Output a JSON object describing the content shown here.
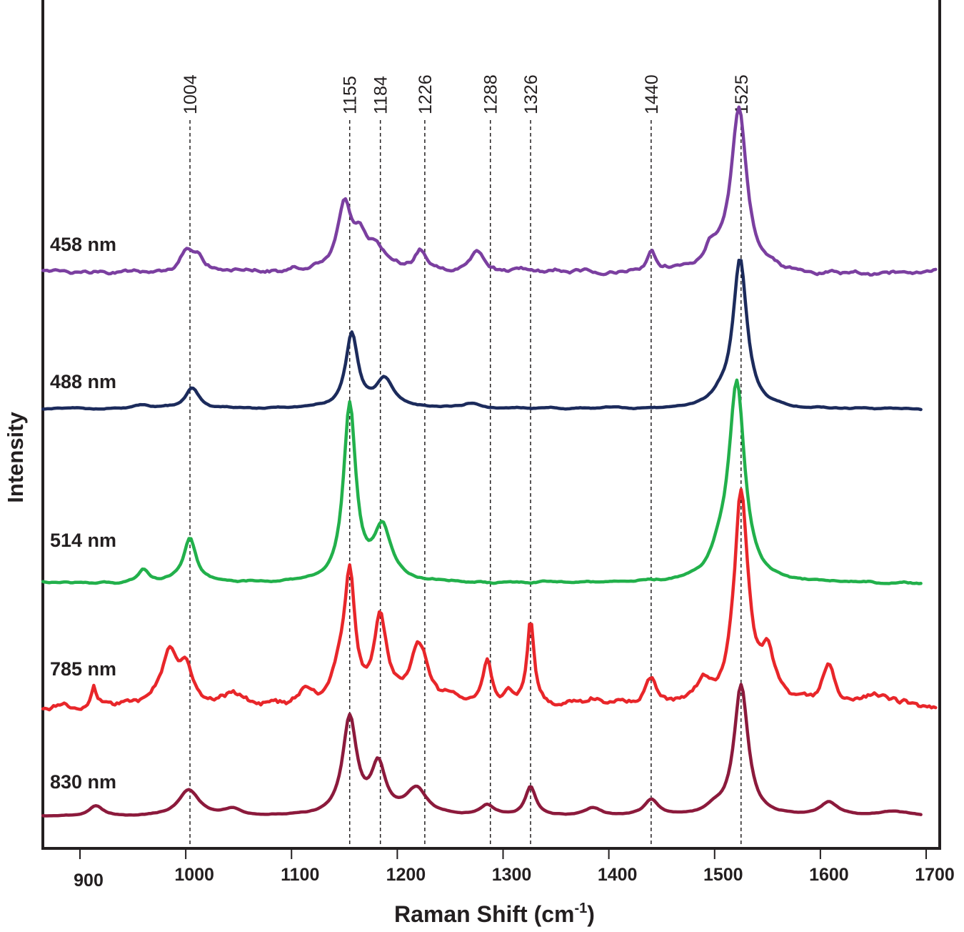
{
  "chart_data": {
    "type": "line",
    "title": "",
    "xlabel": "Raman Shift (cm",
    "xlabel_superscript": "-1",
    "xlabel_suffix": ")",
    "ylabel": "Intensity",
    "xlim": [
      865,
      1710
    ],
    "x_ticks": [
      900,
      1000,
      1100,
      1200,
      1300,
      1400,
      1500,
      1600,
      1700
    ],
    "y_ticks": [],
    "grid": false,
    "legend": "inline labels at left of each trace",
    "peak_markers": [
      1004,
      1155,
      1184,
      1226,
      1288,
      1326,
      1440,
      1525
    ],
    "series": [
      {
        "name": "458 nm",
        "color": "#7b3fa0",
        "x_range": [
          865,
          1710
        ],
        "baseline": 0.19,
        "noise": 0.038,
        "peaks": [
          [
            1000,
            0.13,
            8
          ],
          [
            1012,
            0.08,
            6
          ],
          [
            1150,
            0.42,
            8
          ],
          [
            1165,
            0.14,
            6
          ],
          [
            1180,
            0.16,
            12
          ],
          [
            1222,
            0.12,
            6
          ],
          [
            1275,
            0.12,
            8
          ],
          [
            1440,
            0.13,
            4
          ],
          [
            1496,
            0.12,
            8
          ],
          [
            1523,
            1.0,
            9
          ]
        ]
      },
      {
        "name": "488 nm",
        "color": "#1c2b5c",
        "x_range": [
          865,
          1695
        ],
        "baseline": 0.0,
        "noise": 0.012,
        "peaks": [
          [
            960,
            0.02,
            10
          ],
          [
            1006,
            0.14,
            8
          ],
          [
            1157,
            0.5,
            7
          ],
          [
            1188,
            0.19,
            10
          ],
          [
            1270,
            0.03,
            10
          ],
          [
            1505,
            0.06,
            10
          ],
          [
            1524,
            1.0,
            8
          ]
        ]
      },
      {
        "name": "514 nm",
        "color": "#22b04b",
        "x_range": [
          865,
          1695
        ],
        "baseline": 0.0,
        "noise": 0.012,
        "peaks": [
          [
            960,
            0.07,
            6
          ],
          [
            1004,
            0.23,
            7
          ],
          [
            1155,
            0.9,
            7
          ],
          [
            1186,
            0.27,
            10
          ],
          [
            1505,
            0.1,
            12
          ],
          [
            1521,
            1.0,
            9
          ]
        ]
      },
      {
        "name": "785 nm",
        "color": "#e8262a",
        "x_range": [
          865,
          1710
        ],
        "baseline": 0.04,
        "noise": 0.045,
        "peaks": [
          [
            913,
            0.1,
            3
          ],
          [
            985,
            0.25,
            8
          ],
          [
            1000,
            0.18,
            8
          ],
          [
            1045,
            0.06,
            10
          ],
          [
            1113,
            0.05,
            7
          ],
          [
            1155,
            0.58,
            6
          ],
          [
            1145,
            0.12,
            8
          ],
          [
            1184,
            0.4,
            7
          ],
          [
            1220,
            0.28,
            11
          ],
          [
            1285,
            0.19,
            5
          ],
          [
            1304,
            0.07,
            5
          ],
          [
            1326,
            0.4,
            4
          ],
          [
            1385,
            0.04,
            8
          ],
          [
            1439,
            0.13,
            7
          ],
          [
            1490,
            0.09,
            10
          ],
          [
            1525,
            1.0,
            8
          ],
          [
            1550,
            0.22,
            8
          ],
          [
            1608,
            0.18,
            7
          ],
          [
            1660,
            0.05,
            20
          ]
        ]
      },
      {
        "name": "830 nm",
        "color": "#8c1a3c",
        "x_range": [
          865,
          1695
        ],
        "baseline": 0.0,
        "noise": 0.008,
        "peaks": [
          [
            915,
            0.08,
            8
          ],
          [
            1003,
            0.2,
            12
          ],
          [
            1045,
            0.05,
            10
          ],
          [
            1155,
            0.74,
            8
          ],
          [
            1182,
            0.37,
            8
          ],
          [
            1218,
            0.2,
            12
          ],
          [
            1285,
            0.08,
            8
          ],
          [
            1326,
            0.22,
            6
          ],
          [
            1385,
            0.06,
            10
          ],
          [
            1440,
            0.12,
            8
          ],
          [
            1500,
            0.05,
            10
          ],
          [
            1525,
            1.0,
            8
          ],
          [
            1608,
            0.1,
            10
          ],
          [
            1670,
            0.04,
            20
          ]
        ]
      }
    ]
  }
}
